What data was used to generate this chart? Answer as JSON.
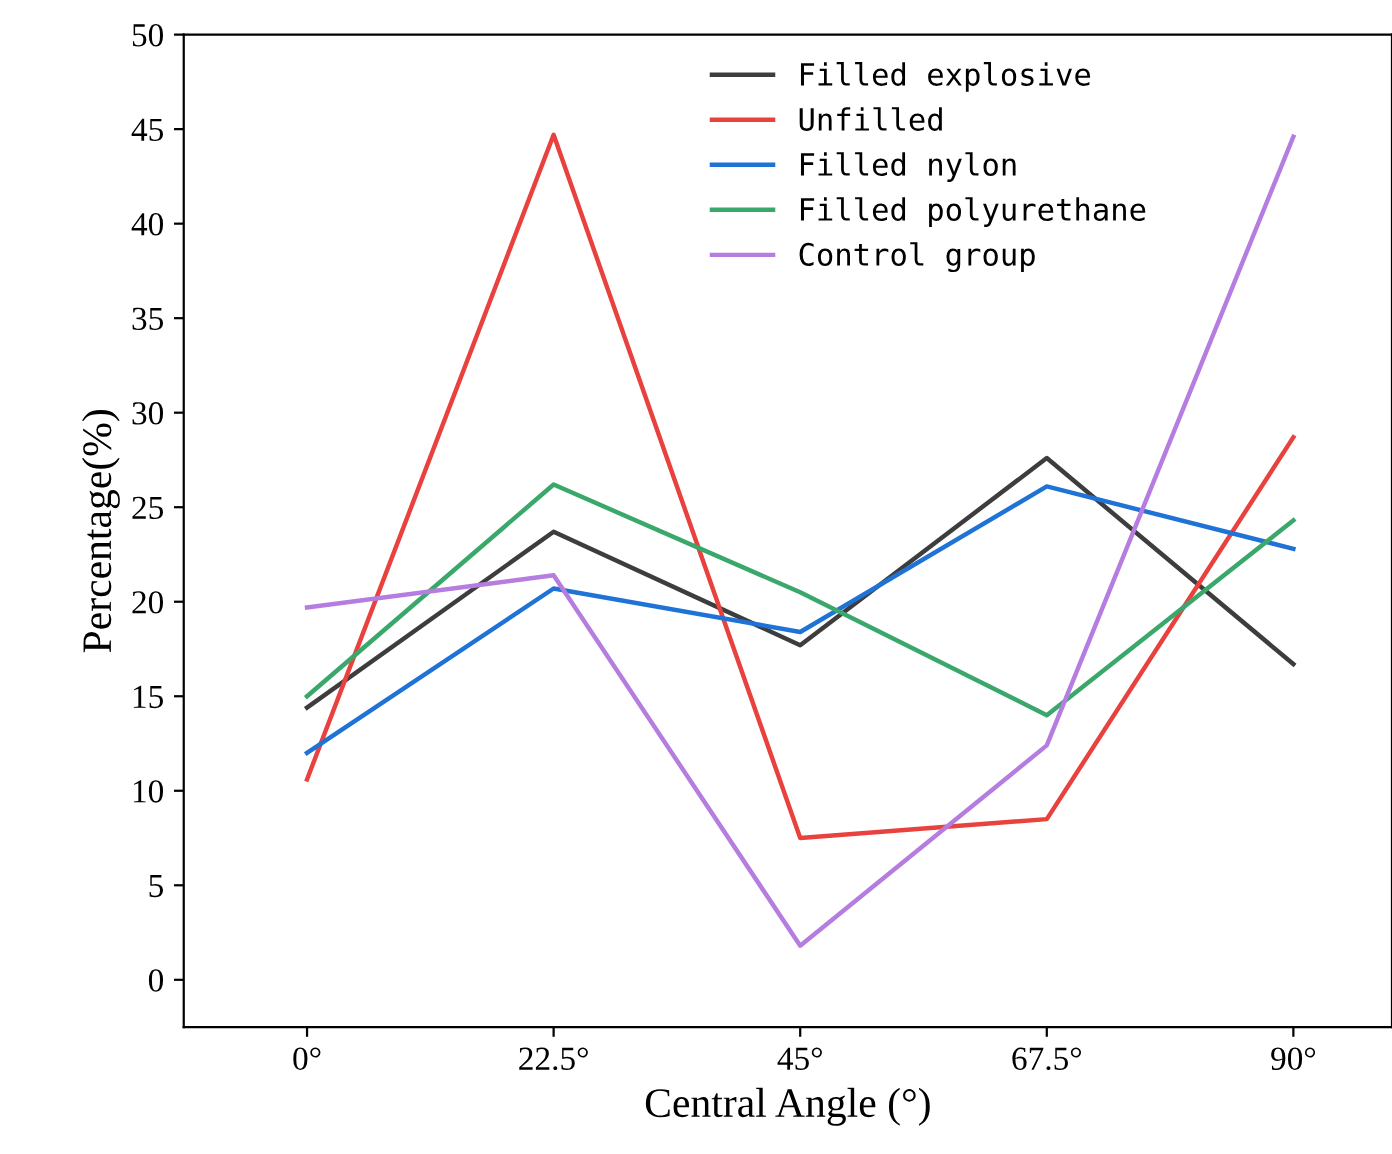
{
  "chart_data": {
    "type": "line",
    "xlabel": "Central Angle (°)",
    "ylabel": "Percentage(%)",
    "x": [
      0,
      22.5,
      45,
      67.5,
      90
    ],
    "xlim": [
      -11.25,
      99
    ],
    "xticks": [
      {
        "value": 0,
        "label": "0°"
      },
      {
        "value": 22.5,
        "label": "22.5°"
      },
      {
        "value": 45,
        "label": "45°"
      },
      {
        "value": 67.5,
        "label": "67.5°"
      },
      {
        "value": 90,
        "label": "90°"
      }
    ],
    "ylim": [
      -2.5,
      50
    ],
    "yticks": [
      0,
      5,
      10,
      15,
      20,
      25,
      30,
      35,
      40,
      45,
      50
    ],
    "grid": false,
    "legend": "top right",
    "marker": "none",
    "line_style": "solid",
    "series": [
      {
        "name": "Filled explosive",
        "color": "#3d3d3d",
        "values": [
          14.4,
          23.7,
          17.7,
          27.6,
          16.7
        ]
      },
      {
        "name": "Unfilled",
        "color": "#e8413e",
        "values": [
          10.6,
          44.7,
          7.5,
          8.5,
          28.7
        ]
      },
      {
        "name": "Filled nylon",
        "color": "#1f73d6",
        "values": [
          12.0,
          20.7,
          18.4,
          26.1,
          22.8
        ]
      },
      {
        "name": "Filled polyurethane",
        "color": "#3aa86b",
        "values": [
          15.0,
          26.2,
          20.5,
          14.0,
          24.3
        ]
      },
      {
        "name": "Control group",
        "color": "#b67de0",
        "values": [
          19.7,
          21.4,
          1.8,
          12.4,
          44.6
        ]
      }
    ]
  }
}
